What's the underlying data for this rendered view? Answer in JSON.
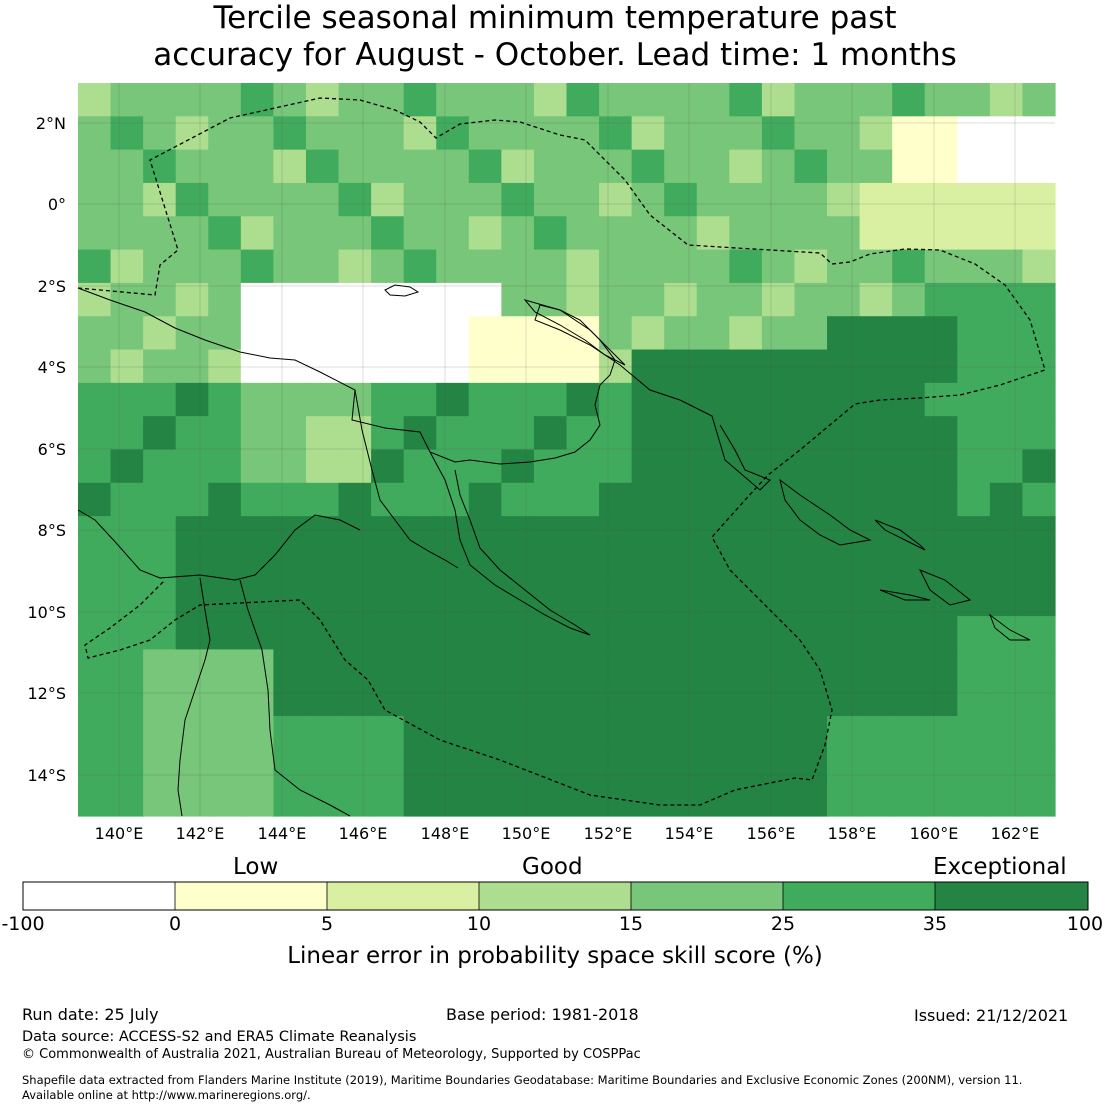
{
  "title_line1": "Tercile seasonal minimum temperature past",
  "title_line2": "accuracy for August - October. Lead time: 1 months",
  "map": {
    "lat_labels": [
      "2°N",
      "0°",
      "2°S",
      "4°S",
      "6°S",
      "8°S",
      "10°S",
      "12°S",
      "14°S"
    ],
    "lon_labels": [
      "140°E",
      "142°E",
      "144°E",
      "146°E",
      "148°E",
      "150°E",
      "152°E",
      "154°E",
      "156°E",
      "158°E",
      "160°E",
      "162°E"
    ]
  },
  "colorbar": {
    "categories": [
      "Low",
      "Good",
      "Exceptional"
    ],
    "ticks": [
      "-100",
      "0",
      "5",
      "10",
      "15",
      "25",
      "35",
      "100"
    ],
    "colors": [
      "#ffffff",
      "#ffffcc",
      "#d9f0a3",
      "#addd8e",
      "#78c679",
      "#41ab5d",
      "#238443"
    ],
    "title": "Linear error in probability space skill score (%)"
  },
  "footer": {
    "run_date": "Run date: 25 July",
    "base_period": "Base period: 1981-2018",
    "issued": "Issued: 21/12/2021",
    "data_source": "Data source: ACCESS-S2 and ERA5 Climate Reanalysis",
    "copyright": "© Commonwealth of Australia 2021, Australian Bureau of Meteorology, Supported by COSPPac",
    "shapefile1": "Shapefile data extracted from Flanders Marine Institute (2019), Maritime Boundaries Geodatabase: Maritime Boundaries and Exclusive Economic Zones (200NM), version 11.",
    "shapefile2": "Available online at http://www.marineregions.org/."
  }
}
